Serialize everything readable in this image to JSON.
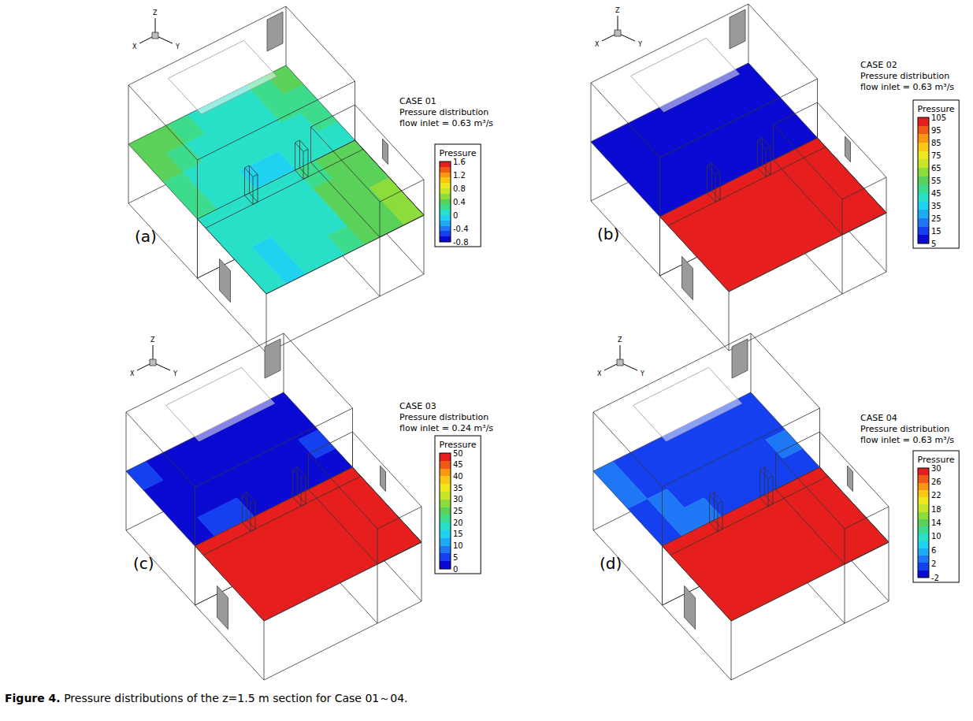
{
  "figure": {
    "caption_label": "Figure 4.",
    "caption": "Pressure distributions of the z=1.5 m section for Case 01～04.",
    "axis_labels": [
      "X",
      "Y",
      "Z"
    ]
  },
  "chart_data": [
    {
      "type": "heatmap",
      "label": "(a)",
      "title": "CASE 01",
      "subtitle": "Pressure distribution",
      "annotations": [
        "flow inlet = 0.63 m³/s"
      ],
      "colorbar": {
        "title": "Pressure",
        "range": [
          -0.8,
          1.6
        ],
        "ticks": [
          -0.8,
          -0.4,
          0,
          0.4,
          0.8,
          1.2,
          1.6
        ]
      },
      "cells": [
        [
          0.45,
          0.4,
          0.3,
          0.1,
          0.05,
          0.15,
          0.3,
          0.35
        ],
        [
          0.4,
          0.3,
          0.15,
          0.05,
          0.0,
          0.05,
          0.2,
          0.3
        ],
        [
          0.3,
          0.15,
          0.05,
          0.0,
          0.0,
          0.0,
          0.1,
          0.2
        ],
        [
          0.2,
          0.05,
          0.0,
          -0.05,
          -0.05,
          0.0,
          0.0,
          0.05
        ],
        [
          0.05,
          0.0,
          0.0,
          0.0,
          0.05,
          0.25,
          0.4,
          0.45
        ],
        [
          0.0,
          0.0,
          0.0,
          0.05,
          0.1,
          0.35,
          0.45,
          0.45
        ],
        [
          0.0,
          -0.05,
          0.0,
          0.05,
          0.15,
          0.4,
          0.45,
          0.5
        ],
        [
          0.0,
          -0.05,
          0.0,
          0.05,
          0.2,
          0.4,
          0.45,
          0.5
        ]
      ]
    },
    {
      "type": "heatmap",
      "label": "(b)",
      "title": "CASE 02",
      "subtitle": "Pressure distribution",
      "annotations": [
        "flow inlet = 0.63 m³/s"
      ],
      "colorbar": {
        "title": "Pressure",
        "range": [
          5,
          105
        ],
        "ticks": [
          5,
          15,
          25,
          35,
          45,
          55,
          65,
          75,
          85,
          95,
          105
        ]
      },
      "cells": [
        [
          6,
          6,
          6,
          6,
          6,
          6,
          6,
          6
        ],
        [
          6,
          6,
          6,
          6,
          6,
          6,
          6,
          6
        ],
        [
          6,
          6,
          6,
          6,
          6,
          6,
          6,
          6
        ],
        [
          7,
          6,
          6,
          6,
          6,
          6,
          6,
          7
        ],
        [
          105,
          105,
          105,
          105,
          105,
          105,
          105,
          105
        ],
        [
          105,
          105,
          105,
          105,
          105,
          105,
          105,
          105
        ],
        [
          105,
          105,
          105,
          105,
          105,
          105,
          105,
          105
        ],
        [
          105,
          105,
          105,
          105,
          105,
          105,
          105,
          105
        ]
      ]
    },
    {
      "type": "heatmap",
      "label": "(c)",
      "title": "CASE 03",
      "subtitle": "Pressure distribution",
      "annotations": [
        "flow inlet = 0.24 m³/s"
      ],
      "colorbar": {
        "title": "Pressure",
        "range": [
          0,
          50
        ],
        "ticks": [
          0,
          5,
          10,
          15,
          20,
          25,
          30,
          35,
          40,
          45,
          50
        ]
      },
      "cells": [
        [
          4,
          1,
          1,
          1,
          1,
          1,
          1,
          1
        ],
        [
          1,
          1,
          1,
          1,
          1,
          1,
          1,
          1
        ],
        [
          1,
          1,
          1,
          1,
          1,
          1,
          1,
          4
        ],
        [
          1,
          4,
          4,
          1,
          1,
          1,
          1,
          1
        ],
        [
          50,
          50,
          50,
          50,
          50,
          50,
          50,
          50
        ],
        [
          50,
          50,
          50,
          50,
          50,
          50,
          50,
          50
        ],
        [
          50,
          50,
          50,
          50,
          50,
          50,
          50,
          50
        ],
        [
          50,
          50,
          50,
          50,
          50,
          50,
          50,
          50
        ]
      ]
    },
    {
      "type": "heatmap",
      "label": "(d)",
      "title": "CASE 04",
      "subtitle": "Pressure distribution",
      "annotations": [
        "flow inlet = 0.63 m³/s"
      ],
      "colorbar": {
        "title": "Pressure",
        "range": [
          -2,
          30
        ],
        "ticks": [
          -2,
          2,
          6,
          10,
          14,
          18,
          22,
          26,
          30
        ]
      },
      "cells": [
        [
          3,
          1,
          1,
          1,
          1,
          1,
          1,
          1
        ],
        [
          3,
          1,
          1,
          1,
          1,
          1,
          1,
          1
        ],
        [
          1,
          3,
          1,
          1,
          1,
          1,
          1,
          3
        ],
        [
          1,
          3,
          3,
          1,
          1,
          1,
          1,
          1
        ],
        [
          30,
          30,
          30,
          30,
          30,
          30,
          30,
          30
        ],
        [
          30,
          30,
          30,
          30,
          30,
          30,
          30,
          30
        ],
        [
          30,
          30,
          30,
          30,
          30,
          30,
          30,
          30
        ],
        [
          30,
          30,
          30,
          30,
          30,
          30,
          30,
          30
        ]
      ]
    }
  ]
}
